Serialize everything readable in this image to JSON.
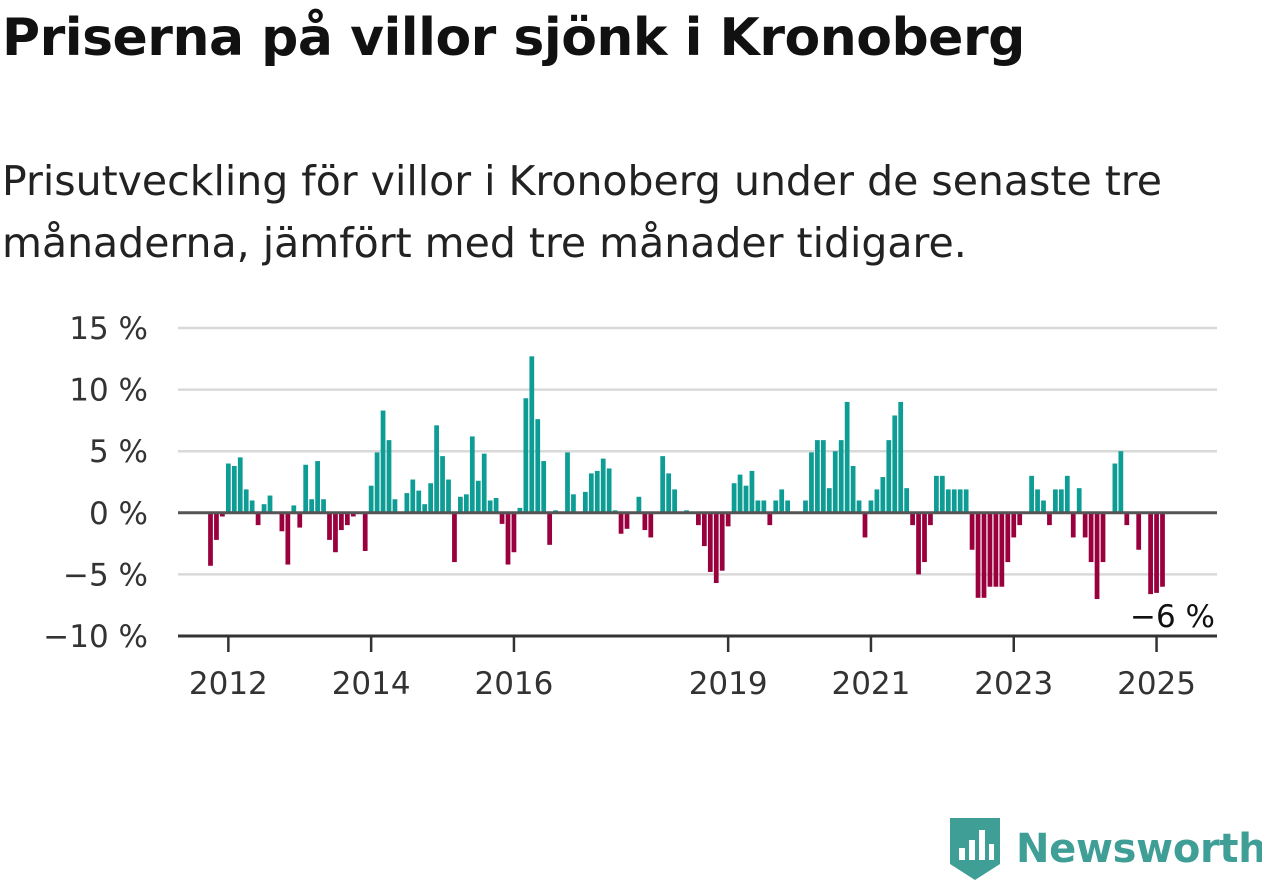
{
  "title": "Priserna på villor sjönk i Kronoberg",
  "subtitle": "Prisutveckling för villor i Kronoberg under de senaste tre månaderna, jämfört med tre månader tidigare.",
  "brand": {
    "name": "Newsworthy",
    "color": "#3f9e95"
  },
  "colors": {
    "positive": "#0d9d94",
    "negative": "#99003d",
    "grid": "#d9d9d9",
    "zero_line": "#555555"
  },
  "chart_data": {
    "type": "bar",
    "title": "",
    "xlabel": "",
    "ylabel": "",
    "ylim": [
      -10,
      15
    ],
    "y_ticks": [
      {
        "value": 15,
        "label": "15 %"
      },
      {
        "value": 10,
        "label": "10 %"
      },
      {
        "value": 5,
        "label": "5 %"
      },
      {
        "value": 0,
        "label": "0 %"
      },
      {
        "value": -5,
        "label": "−5 %"
      },
      {
        "value": -10,
        "label": "−10 %"
      }
    ],
    "x_start_month": "2011-10",
    "x_ticks": [
      {
        "date": "2012-01",
        "label": "2012"
      },
      {
        "date": "2014-01",
        "label": "2014"
      },
      {
        "date": "2016-01",
        "label": "2016"
      },
      {
        "date": "2019-01",
        "label": "2019"
      },
      {
        "date": "2021-01",
        "label": "2021"
      },
      {
        "date": "2023-01",
        "label": "2023"
      },
      {
        "date": "2025-01",
        "label": "2025"
      }
    ],
    "grid": true,
    "annotation": {
      "date": "2025-02",
      "label": "−6 %"
    },
    "values": [
      -4.3,
      -2.2,
      -0.3,
      4.0,
      3.8,
      4.5,
      1.9,
      1.0,
      -1.0,
      0.7,
      1.4,
      0.0,
      -1.5,
      -4.2,
      0.6,
      -1.2,
      3.9,
      1.1,
      4.2,
      1.1,
      -2.2,
      -3.2,
      -1.4,
      -1.0,
      -0.3,
      0.0,
      -3.1,
      2.2,
      4.9,
      8.3,
      5.9,
      1.1,
      0.0,
      1.6,
      2.7,
      1.8,
      0.7,
      2.4,
      7.1,
      4.6,
      2.7,
      -4.0,
      1.3,
      1.5,
      6.2,
      2.6,
      4.8,
      1.0,
      1.2,
      -0.9,
      -4.2,
      -3.2,
      0.4,
      9.3,
      12.7,
      7.6,
      4.2,
      -2.6,
      0.2,
      0.0,
      4.9,
      1.5,
      0.0,
      1.7,
      3.2,
      3.4,
      4.4,
      3.6,
      0.2,
      -1.7,
      -1.3,
      0.0,
      1.3,
      -1.4,
      -2.0,
      0.0,
      4.6,
      3.2,
      1.9,
      0.0,
      0.2,
      0.0,
      -1.0,
      -2.7,
      -4.8,
      -5.7,
      -4.7,
      -1.1,
      2.4,
      3.1,
      2.2,
      3.4,
      1.0,
      1.0,
      -1.0,
      1.0,
      1.9,
      1.0,
      0.0,
      0.0,
      1.0,
      4.9,
      5.9,
      5.9,
      2.0,
      5.0,
      5.9,
      9.0,
      3.8,
      1.0,
      -2.0,
      1.0,
      1.9,
      2.9,
      5.9,
      7.9,
      9.0,
      2.0,
      -1.0,
      -5.0,
      -4.0,
      -1.0,
      3.0,
      3.0,
      1.9,
      1.9,
      1.9,
      1.9,
      -3.0,
      -6.9,
      -6.9,
      -6.0,
      -6.0,
      -6.0,
      -4.0,
      -2.0,
      -1.0,
      0.0,
      3.0,
      1.9,
      1.0,
      -1.0,
      1.9,
      1.9,
      3.0,
      -2.0,
      2.0,
      -2.0,
      -4.0,
      -7.0,
      -4.0,
      0.0,
      4.0,
      5.0,
      -1.0,
      0.0,
      -3.0,
      0.0,
      -6.6,
      -6.5,
      -6.0
    ]
  }
}
